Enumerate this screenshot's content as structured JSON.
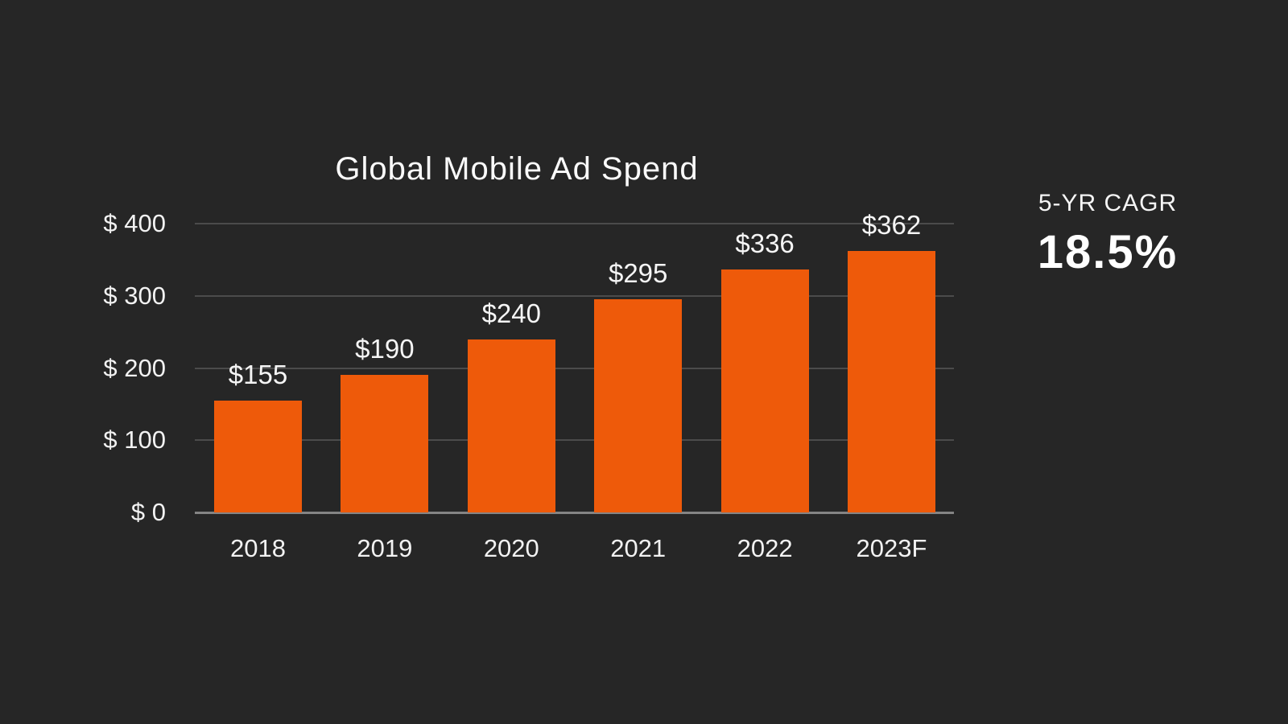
{
  "slide": {
    "background": "#262626",
    "text_color": "#f2f2f2"
  },
  "chart_data": {
    "type": "bar",
    "title": "Global Mobile Ad Spend",
    "categories": [
      "2018",
      "2019",
      "2020",
      "2021",
      "2022",
      "2023F"
    ],
    "values": [
      155,
      190,
      240,
      295,
      336,
      362
    ],
    "bar_labels": [
      "$155",
      "$190",
      "$240",
      "$295",
      "$336",
      "$362"
    ],
    "xlabel": "",
    "ylabel": "",
    "ylim": [
      0,
      400
    ],
    "y_tick_values": [
      0,
      100,
      200,
      300,
      400
    ],
    "y_tick_labels": [
      "$ 0",
      "$ 100",
      "$ 200",
      "$ 300",
      "$ 400"
    ],
    "grid": true,
    "legend": false,
    "bar_color": "#ee5a0a"
  },
  "callout": {
    "label": "5-YR CAGR",
    "value": "18.5%"
  }
}
